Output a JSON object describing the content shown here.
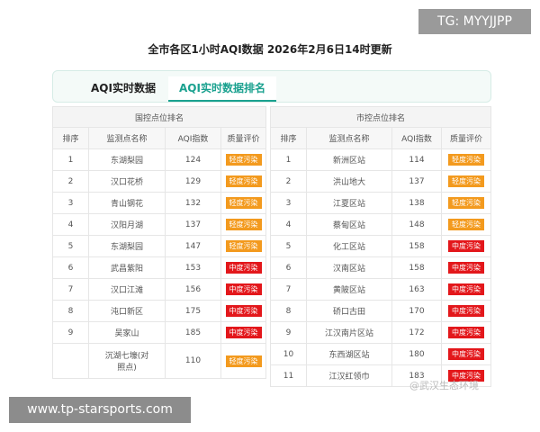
{
  "watermark_top": "TG: MYYJJPP",
  "title": "全市各区1小时AQI数据 2026年2月6日14时更新",
  "tabs": [
    "AQI实时数据",
    "AQI实时数据排名"
  ],
  "badge_colors": {
    "轻度污染": "#f39a1e",
    "中度污染": "#e3171b"
  },
  "tables": [
    {
      "heading": "国控点位排名",
      "columns": [
        "排序",
        "监测点名称",
        "AQI指数",
        "质量评价"
      ],
      "rows": [
        [
          "1",
          "东湖梨园",
          "124",
          "轻度污染"
        ],
        [
          "2",
          "汉口花桥",
          "129",
          "轻度污染"
        ],
        [
          "3",
          "青山钢花",
          "132",
          "轻度污染"
        ],
        [
          "4",
          "汉阳月湖",
          "137",
          "轻度污染"
        ],
        [
          "5",
          "东湖梨园",
          "147",
          "轻度污染"
        ],
        [
          "6",
          "武昌紫阳",
          "153",
          "中度污染"
        ],
        [
          "7",
          "汉口江滩",
          "156",
          "中度污染"
        ],
        [
          "8",
          "沌口新区",
          "175",
          "中度污染"
        ],
        [
          "9",
          "吴家山",
          "185",
          "中度污染"
        ],
        [
          null,
          "沉湖七壕(对照点)",
          "110",
          "轻度污染"
        ]
      ]
    },
    {
      "heading": "市控点位排名",
      "columns": [
        "排序",
        "监测点名称",
        "AQI指数",
        "质量评价"
      ],
      "rows": [
        [
          "1",
          "新洲区站",
          "114",
          "轻度污染"
        ],
        [
          "2",
          "洪山地大",
          "137",
          "轻度污染"
        ],
        [
          "3",
          "江夏区站",
          "138",
          "轻度污染"
        ],
        [
          "4",
          "蔡甸区站",
          "148",
          "轻度污染"
        ],
        [
          "5",
          "化工区站",
          "158",
          "中度污染"
        ],
        [
          "6",
          "汉南区站",
          "158",
          "中度污染"
        ],
        [
          "7",
          "黄陂区站",
          "163",
          "中度污染"
        ],
        [
          "8",
          "硚口古田",
          "170",
          "中度污染"
        ],
        [
          "9",
          "江汉南片区站",
          "172",
          "中度污染"
        ],
        [
          "10",
          "东西湖区站",
          "180",
          "中度污染"
        ],
        [
          "11",
          "江汉红领巾",
          "183",
          "中度污染"
        ]
      ]
    }
  ],
  "watermark_weibo": "@武汉生态环境",
  "watermark_bottom": "www.tp-starsports.com"
}
